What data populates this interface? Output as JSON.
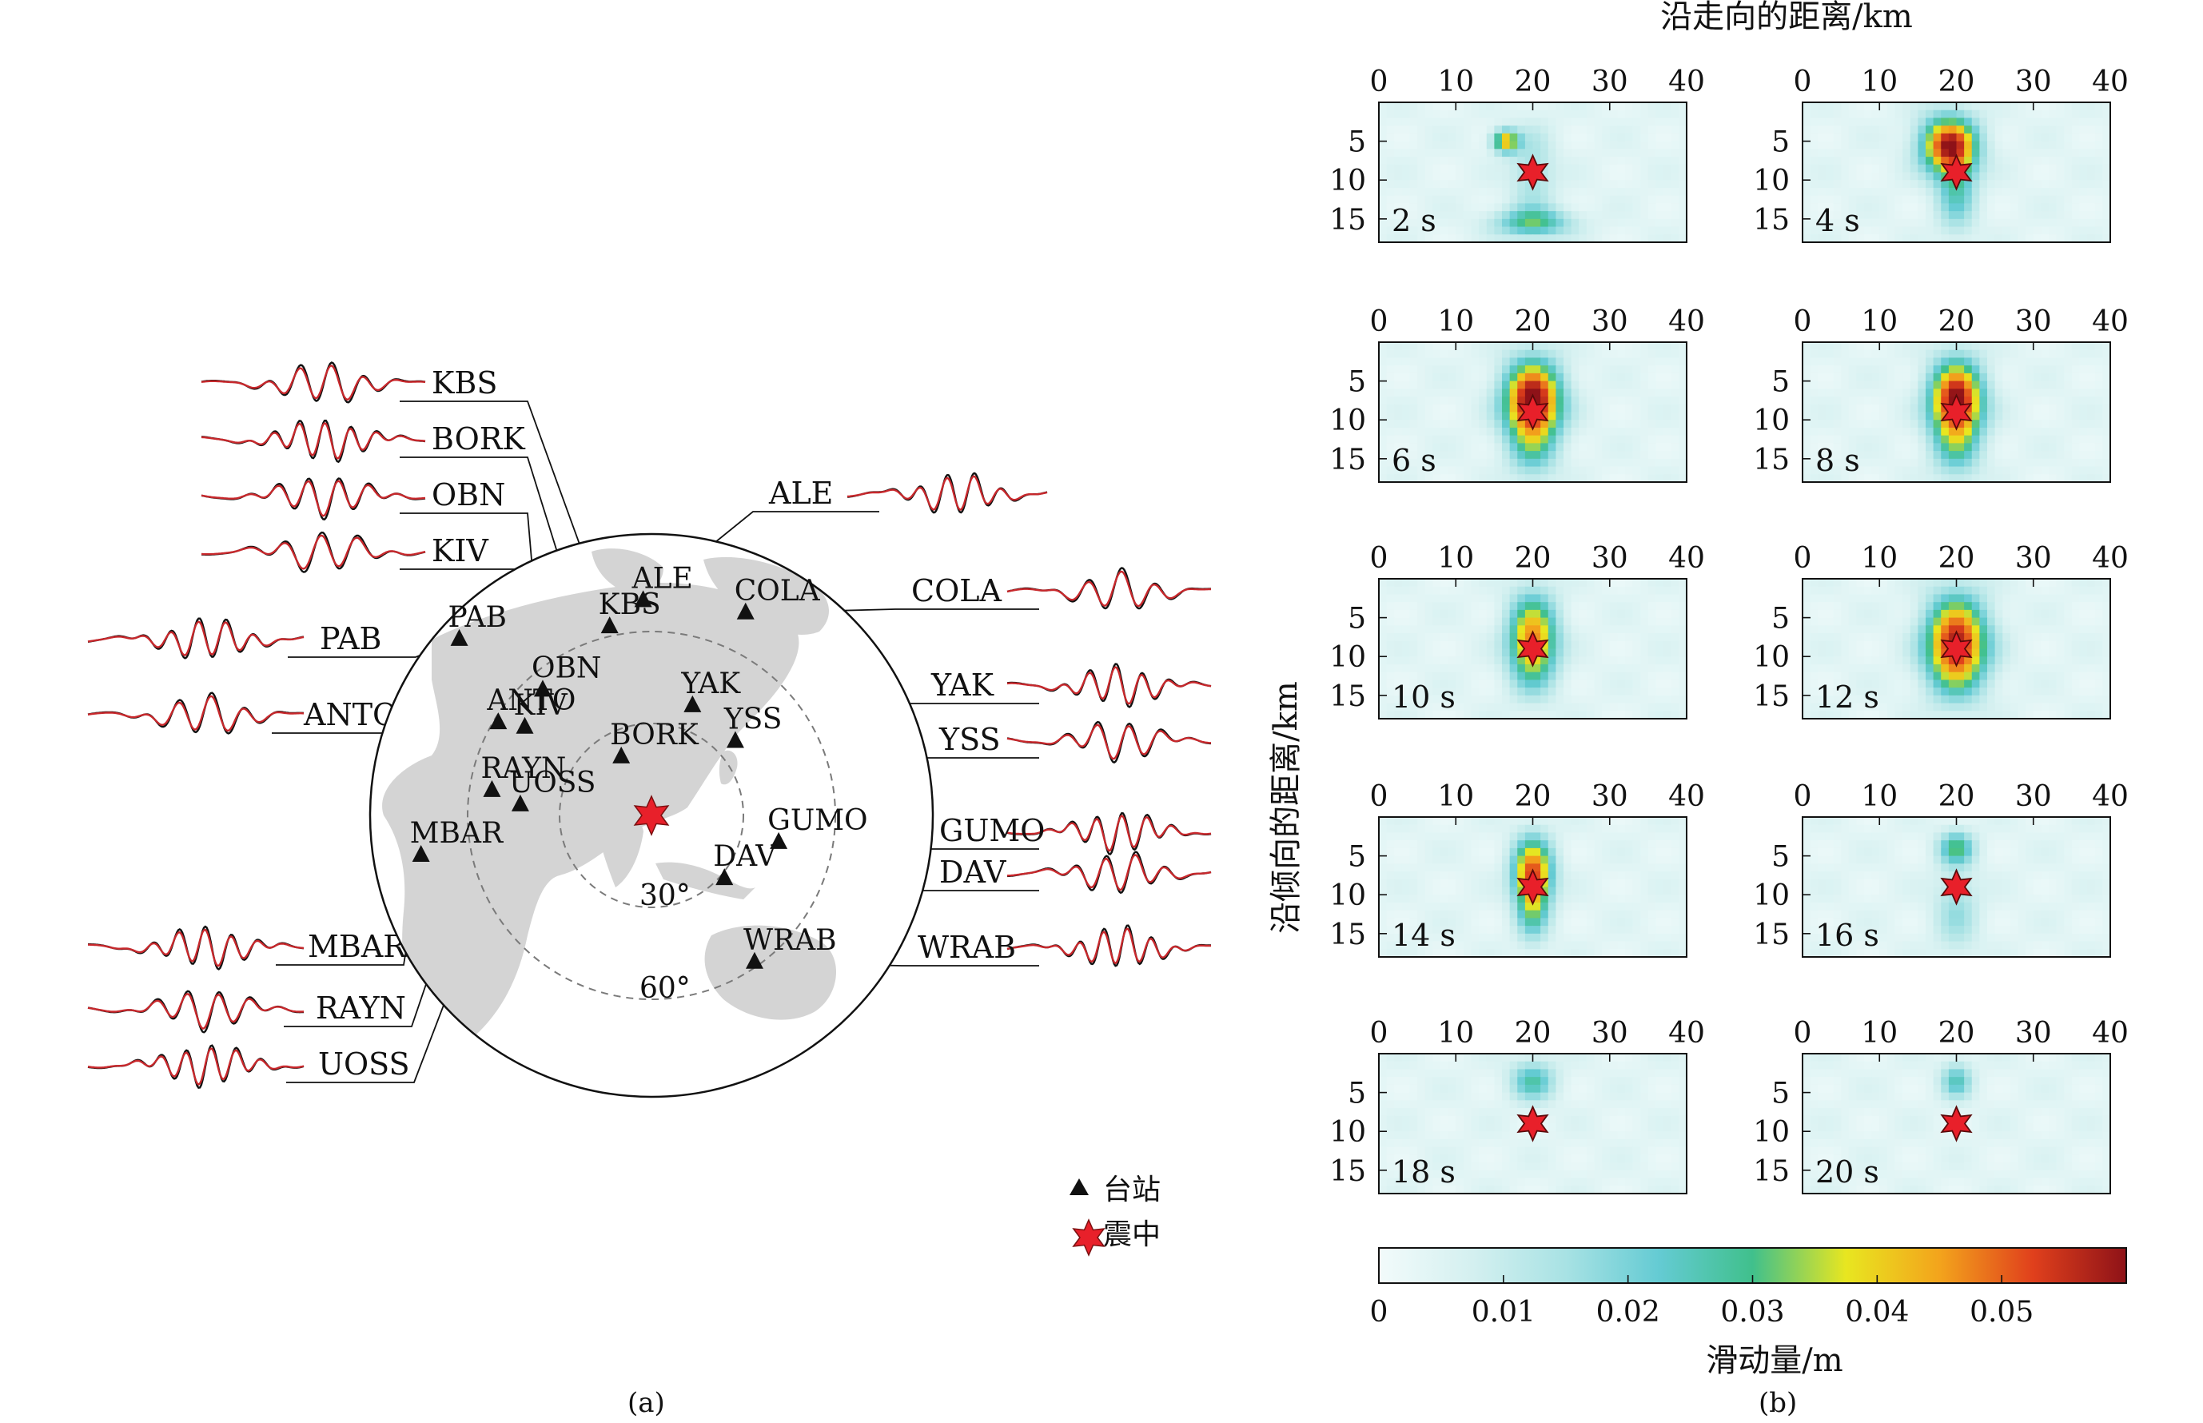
{
  "figure": {
    "caption_a": "(a)",
    "caption_b": "(b)"
  },
  "map_panel": {
    "stations": [
      {
        "code": "KBS",
        "lon": 12,
        "lat": 79,
        "trace_side": "left",
        "trace_slot": 0
      },
      {
        "code": "BORK",
        "lon": 89,
        "lat": 47,
        "trace_side": "left",
        "trace_slot": 1
      },
      {
        "code": "OBN",
        "lon": 37,
        "lat": 55,
        "trace_side": "left",
        "trace_slot": 2
      },
      {
        "code": "KIV",
        "lon": 43,
        "lat": 44,
        "trace_side": "left",
        "trace_slot": 3
      },
      {
        "code": "PAB",
        "lon": -4,
        "lat": 40,
        "trace_side": "left",
        "trace_slot": 4
      },
      {
        "code": "ANTO",
        "lon": 33,
        "lat": 40,
        "trace_side": "left",
        "trace_slot": 5
      },
      {
        "code": "MBAR",
        "lon": 31,
        "lat": -1,
        "trace_side": "left",
        "trace_slot": 6
      },
      {
        "code": "RAYN",
        "lon": 45,
        "lat": 24,
        "trace_side": "left",
        "trace_slot": 7
      },
      {
        "code": "UOSS",
        "lon": 56,
        "lat": 24,
        "trace_side": "left",
        "trace_slot": 8
      },
      {
        "code": "ALE",
        "lon": -62,
        "lat": 82,
        "trace_side": "right",
        "trace_slot": 0
      },
      {
        "code": "COLA",
        "lon": -148,
        "lat": 65,
        "trace_side": "right",
        "trace_slot": 1
      },
      {
        "code": "YAK",
        "lon": 130,
        "lat": 62,
        "trace_side": "right",
        "trace_slot": 2
      },
      {
        "code": "YSS",
        "lon": 143,
        "lat": 47,
        "trace_side": "right",
        "trace_slot": 3
      },
      {
        "code": "GUMO",
        "lon": 145,
        "lat": 14,
        "trace_side": "right",
        "trace_slot": 4
      },
      {
        "code": "DAV",
        "lon": 126,
        "lat": 7,
        "trace_side": "right",
        "trace_slot": 5
      },
      {
        "code": "WRAB",
        "lon": 134,
        "lat": -20,
        "trace_side": "right",
        "trace_slot": 6
      }
    ],
    "epicenter": {
      "lon": 103,
      "lat": 29
    },
    "distance_rings": [
      "30°",
      "60°"
    ],
    "legend": {
      "station_label": "台站",
      "epicenter_label": "震中"
    }
  },
  "chart_data": {
    "type": "heatmap",
    "title": "",
    "xlabel": "沿走向的距离/km",
    "ylabel": "沿倾向的距离/km",
    "x_ticks": [
      0,
      10,
      20,
      30,
      40
    ],
    "y_ticks": [
      5,
      10,
      15
    ],
    "xlim": [
      0,
      40
    ],
    "ylim": [
      0,
      18
    ],
    "hypocenter": {
      "x": 20,
      "y": 9
    },
    "colorbar": {
      "label": "滑动量/m",
      "range": [
        0,
        0.06
      ],
      "ticks": [
        0,
        0.01,
        0.02,
        0.03,
        0.04,
        0.05
      ],
      "tick_labels": [
        "0",
        "0.01",
        "0.02",
        "0.03",
        "0.04",
        "0.05"
      ],
      "stops": [
        "#f2fbfb",
        "#d4f0f0",
        "#a8e2e4",
        "#64cbd3",
        "#40c08c",
        "#e8e620",
        "#f3a41c",
        "#e0401c",
        "#8e1218"
      ]
    },
    "snapshots": [
      {
        "time": "2 s",
        "patches": [
          {
            "x": 16.5,
            "y": 5,
            "sx": 1.2,
            "sy": 1.0,
            "amp": 0.04
          },
          {
            "x": 20,
            "y": 15.5,
            "sx": 3.5,
            "sy": 1.3,
            "amp": 0.025
          },
          {
            "x": 20,
            "y": 9,
            "sx": 2.0,
            "sy": 4.0,
            "amp": 0.012
          }
        ]
      },
      {
        "time": "4 s",
        "patches": [
          {
            "x": 19,
            "y": 5.5,
            "sx": 2.6,
            "sy": 2.6,
            "amp": 0.05
          },
          {
            "x": 20,
            "y": 11,
            "sx": 1.8,
            "sy": 4.0,
            "amp": 0.02
          }
        ]
      },
      {
        "time": "6 s",
        "patches": [
          {
            "x": 20,
            "y": 7.5,
            "sx": 2.6,
            "sy": 3.5,
            "amp": 0.06
          },
          {
            "x": 20,
            "y": 14,
            "sx": 2.2,
            "sy": 3.0,
            "amp": 0.015
          }
        ]
      },
      {
        "time": "8 s",
        "patches": [
          {
            "x": 20,
            "y": 7.5,
            "sx": 2.4,
            "sy": 3.5,
            "amp": 0.058
          },
          {
            "x": 20,
            "y": 14,
            "sx": 2.2,
            "sy": 3.0,
            "amp": 0.015
          }
        ]
      },
      {
        "time": "10 s",
        "patches": [
          {
            "x": 20,
            "y": 8,
            "sx": 2.2,
            "sy": 4.0,
            "amp": 0.045
          }
        ]
      },
      {
        "time": "12 s",
        "patches": [
          {
            "x": 20,
            "y": 8.5,
            "sx": 2.8,
            "sy": 4.2,
            "amp": 0.056
          }
        ]
      },
      {
        "time": "14 s",
        "patches": [
          {
            "x": 20,
            "y": 7,
            "sx": 1.8,
            "sy": 3.0,
            "amp": 0.045
          },
          {
            "x": 20,
            "y": 12,
            "sx": 1.5,
            "sy": 3.0,
            "amp": 0.02
          }
        ]
      },
      {
        "time": "16 s",
        "patches": [
          {
            "x": 20,
            "y": 4,
            "sx": 1.6,
            "sy": 1.5,
            "amp": 0.025
          },
          {
            "x": 20,
            "y": 12,
            "sx": 2.0,
            "sy": 4.0,
            "amp": 0.012
          }
        ]
      },
      {
        "time": "18 s",
        "patches": [
          {
            "x": 20,
            "y": 3.5,
            "sx": 2.0,
            "sy": 1.8,
            "amp": 0.022
          }
        ]
      },
      {
        "time": "20 s",
        "patches": [
          {
            "x": 20,
            "y": 3.5,
            "sx": 1.4,
            "sy": 1.6,
            "amp": 0.02
          }
        ]
      }
    ]
  }
}
